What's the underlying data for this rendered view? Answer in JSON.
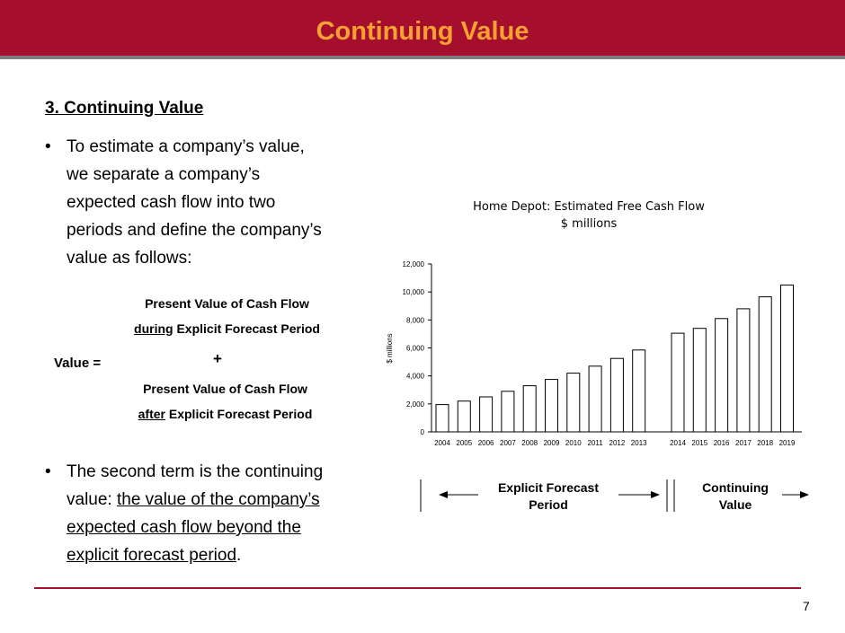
{
  "header": {
    "title": "Continuing Value"
  },
  "section": {
    "heading": "3. Continuing Value"
  },
  "bullets": [
    {
      "marker": "•",
      "lines": [
        "To estimate a company’s value,",
        "we separate a company’s",
        "expected cash flow into two",
        "periods and define the company’s",
        "value as follows:"
      ]
    },
    {
      "marker": "•",
      "line1": "The second term is the continuing",
      "line2_plain": "value: ",
      "line2_u": "the value of the company’s",
      "line3_u": "expected cash flow beyond the",
      "line4_u": "explicit forecast period",
      "line4_end": "."
    }
  ],
  "formula": {
    "value_label": "Value =",
    "plus": "+",
    "term1_line1": "Present Value of Cash Flow",
    "term1_u": "during",
    "term1_rest": " Explicit Forecast Period",
    "term2_line1": "Present Value of Cash Flow",
    "term2_u": "after",
    "term2_rest": " Explicit Forecast Period"
  },
  "chart_data": {
    "type": "bar",
    "title": "Home Depot: Estimated Free Cash Flow",
    "subtitle": "$ millions",
    "ylabel": "$ millions",
    "ylim": [
      0,
      12000
    ],
    "yticks": [
      "0",
      "2,000",
      "4,000",
      "6,000",
      "8,000",
      "10,000",
      "12,000"
    ],
    "categories": [
      "2004",
      "2005",
      "2006",
      "2007",
      "2008",
      "2009",
      "2010",
      "2011",
      "2012",
      "2013",
      "2014",
      "2015",
      "2016",
      "2017",
      "2018",
      "2019"
    ],
    "values": [
      1950,
      2200,
      2500,
      2900,
      3300,
      3750,
      4200,
      4700,
      5250,
      5850,
      7050,
      7400,
      8100,
      8800,
      9650,
      10500
    ],
    "gap_after_index": 9
  },
  "periods": {
    "explicit": {
      "line1": "Explicit Forecast",
      "line2": "Period"
    },
    "continuing": {
      "line1": "Continuing",
      "line2": "Value"
    }
  },
  "footer": {
    "page_number": "7"
  }
}
